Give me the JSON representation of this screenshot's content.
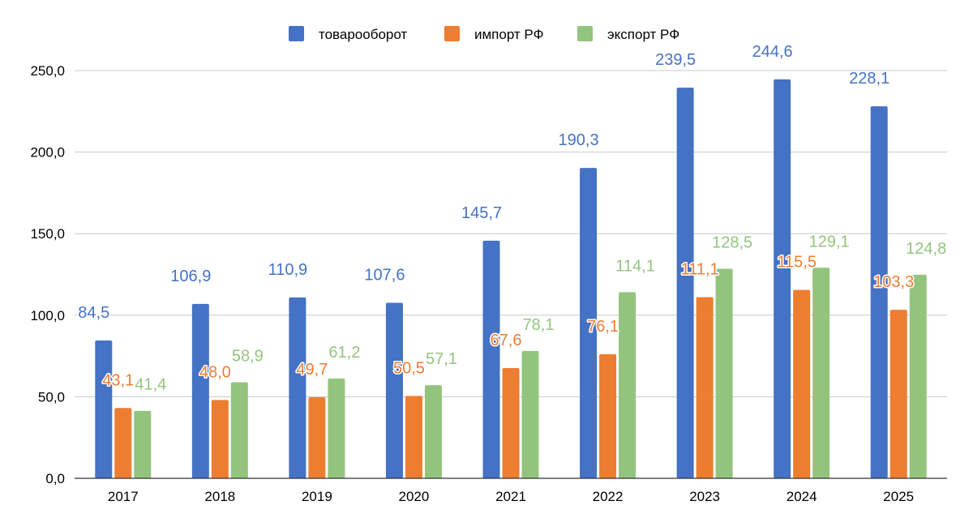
{
  "chart_data": {
    "type": "bar",
    "title": "",
    "xlabel": "",
    "ylabel": "",
    "ylim": [
      0,
      250
    ],
    "y_ticks": [
      "0,0",
      "50,0",
      "100,0",
      "150,0",
      "200,0",
      "250,0"
    ],
    "y_tick_values": [
      0,
      50,
      100,
      150,
      200,
      250
    ],
    "grid": true,
    "legend_position": "top-center",
    "categories": [
      "2017",
      "2018",
      "2019",
      "2020",
      "2021",
      "2022",
      "2023",
      "2024",
      "2025"
    ],
    "series": [
      {
        "name": "товарооборот",
        "color": "#4472C4",
        "values": [
          84.5,
          106.9,
          110.9,
          107.6,
          145.7,
          190.3,
          239.5,
          244.6,
          228.1
        ],
        "labels": [
          "84,5",
          "106,9",
          "110,9",
          "107,6",
          "145,7",
          "190,3",
          "239,5",
          "244,6",
          "228,1"
        ]
      },
      {
        "name": "импорт РФ",
        "color": "#ED7D31",
        "values": [
          43.1,
          48.0,
          49.7,
          50.5,
          67.6,
          76.1,
          111.1,
          115.5,
          103.3
        ],
        "labels": [
          "43,1",
          "48,0",
          "49,7",
          "50,5",
          "67,6",
          "76,1",
          "111,1",
          "115,5",
          "103,3"
        ]
      },
      {
        "name": "экспорт РФ",
        "color": "#93C47D",
        "values": [
          41.4,
          58.9,
          61.2,
          57.1,
          78.1,
          114.1,
          128.5,
          129.1,
          124.8
        ],
        "labels": [
          "41,4",
          "58,9",
          "61,2",
          "57,1",
          "78,1",
          "114,1",
          "128,5",
          "129,1",
          "124,8"
        ]
      }
    ]
  }
}
